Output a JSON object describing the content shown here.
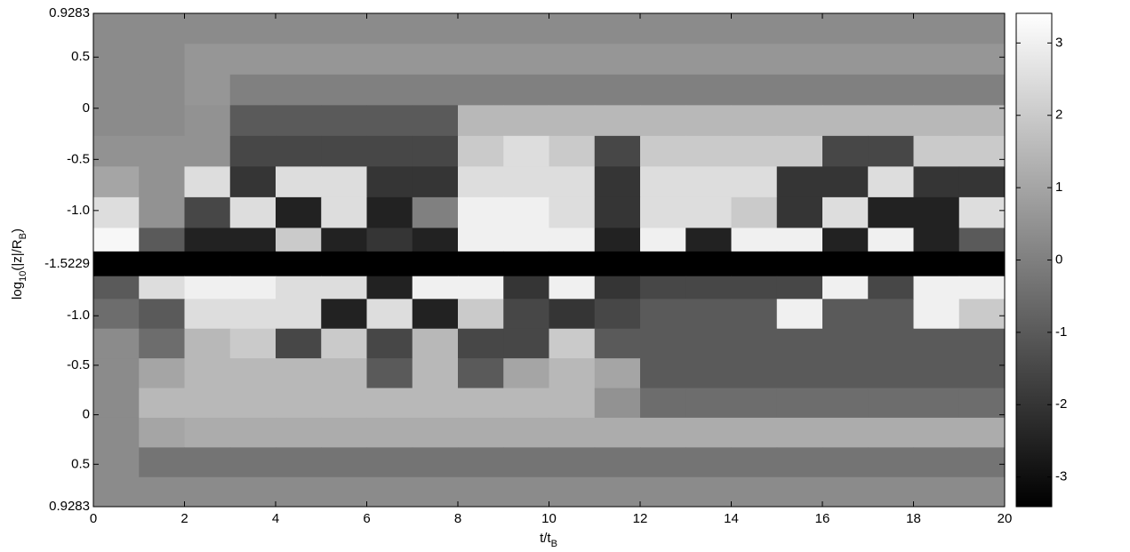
{
  "chart_data": {
    "type": "heatmap",
    "colormap": "gray",
    "xlabel": [
      "t/t",
      "B"
    ],
    "ylabel": [
      "log",
      "10",
      "(|z|/R",
      "B",
      ")"
    ],
    "xlim": [
      0,
      20
    ],
    "xticks": [
      0,
      2,
      4,
      6,
      8,
      10,
      12,
      14,
      16,
      18,
      20
    ],
    "x": [
      0.5,
      1.5,
      2.5,
      3.5,
      4.5,
      5.5,
      6.5,
      7.5,
      8.5,
      9.5,
      10.5,
      11.5,
      12.5,
      13.5,
      14.5,
      15.5,
      16.5,
      17.5,
      18.5,
      19.5
    ],
    "clim": [
      -3.41,
      3.41
    ],
    "cticks": [
      -3,
      -2,
      -1,
      0,
      1,
      2,
      3
    ],
    "panels": [
      {
        "ylim": [
          -1.5229,
          0.9283
        ],
        "yticks": [
          0.9283,
          0.5,
          0,
          -0.5,
          {
            "value": -1,
            "label": "-1.0"
          },
          -1.5229
        ],
        "y": [
          0.78,
          0.48,
          0.18,
          -0.12,
          -0.42,
          -0.72,
          -1.02,
          -1.32,
          -1.48
        ],
        "z": [
          [
            0.3,
            0.3,
            0.3,
            0.3,
            0.3,
            0.3,
            0.3,
            0.3,
            0.3,
            0.3,
            0.3,
            0.3,
            0.3,
            0.3,
            0.3,
            0.3,
            0.3,
            0.3,
            0.3,
            0.3
          ],
          [
            0.3,
            0.3,
            0.6,
            0.6,
            0.6,
            0.6,
            0.6,
            0.6,
            0.6,
            0.6,
            0.6,
            0.6,
            0.6,
            0.6,
            0.6,
            0.6,
            0.6,
            0.6,
            0.6,
            0.6
          ],
          [
            0.3,
            0.3,
            0.6,
            0,
            0,
            0,
            0,
            0,
            0,
            0,
            0,
            0,
            0,
            0,
            0,
            0,
            0,
            0,
            0,
            0
          ],
          [
            0.3,
            0.3,
            0.5,
            -1,
            -1,
            -1,
            -1,
            -1,
            1.5,
            1.5,
            1.5,
            1.5,
            1.5,
            1.5,
            1.5,
            1.5,
            1.5,
            1.5,
            1.5,
            1.5
          ],
          [
            0.5,
            0.5,
            0.5,
            -1.5,
            -1.5,
            -1.5,
            -1.5,
            -1.5,
            2,
            2.5,
            2,
            -1.5,
            2,
            2,
            2,
            2,
            -1.5,
            -1.5,
            2,
            2
          ],
          [
            1,
            0.5,
            2.5,
            -2,
            2.5,
            2.5,
            -2,
            -2,
            2.5,
            2.5,
            2.5,
            -2,
            2.5,
            2.5,
            2.5,
            -2,
            -2,
            2.5,
            -2,
            -2
          ],
          [
            2.5,
            0.5,
            -1.5,
            2.5,
            -2.5,
            2.5,
            -2.5,
            0,
            3,
            3,
            2.5,
            -2,
            2.5,
            2.5,
            2,
            -2,
            2.5,
            -2.5,
            -2.5,
            2.5
          ],
          [
            3.2,
            -1,
            -2.5,
            -2.5,
            2,
            -2.5,
            -2,
            -2.5,
            3,
            3,
            3,
            -2.5,
            3,
            -2.5,
            3,
            3,
            -2.5,
            3,
            -2.5,
            -1
          ],
          [
            -3.4,
            -3.4,
            -3.4,
            -3.4,
            -3.4,
            -3.4,
            -3.4,
            -3.4,
            -3.4,
            -3.4,
            -3.4,
            -3.4,
            -3.4,
            -3.4,
            -3.4,
            -3.4,
            -3.4,
            -3.4,
            -3.4,
            -3.4
          ]
        ]
      },
      {
        "ylim": [
          -1.5229,
          0.9283
        ],
        "yticks": [
          {
            "value": -1,
            "label": "-1.0"
          },
          -0.5,
          0,
          0.5,
          0.9283
        ],
        "y": [
          -1.48,
          -1.32,
          -1.02,
          -0.72,
          -0.42,
          -0.12,
          0.18,
          0.48,
          0.78
        ],
        "z": [
          [
            -3.4,
            -3.4,
            -3.4,
            -3.4,
            -3.4,
            -3.4,
            -3.4,
            -3.4,
            -3.4,
            -3.4,
            -3.4,
            -3.4,
            -3.4,
            -3.4,
            -3.4,
            -3.4,
            -3.4,
            -3.4,
            -3.4,
            -3.4
          ],
          [
            -1,
            2.5,
            3,
            3,
            2.5,
            2.5,
            -2.5,
            3,
            3,
            -2,
            3,
            -2,
            -1.5,
            -1.5,
            -1.5,
            -1.5,
            3,
            -1.5,
            3,
            3
          ],
          [
            -0.5,
            -1,
            2.5,
            2.5,
            2.5,
            -2.5,
            2.5,
            -2.5,
            2,
            -1.5,
            -2,
            -1.5,
            -1,
            -1,
            -1,
            3,
            -1,
            -1,
            3,
            2
          ],
          [
            0.3,
            -0.5,
            1.5,
            2,
            -1.5,
            2,
            -1.5,
            1.5,
            -1.5,
            -1.5,
            2,
            -1,
            -1,
            -1,
            -1,
            -1,
            -1,
            -1,
            -1,
            -1
          ],
          [
            0.3,
            1,
            1.5,
            1.5,
            1.5,
            1.5,
            -1,
            1.5,
            -1,
            1,
            1.5,
            1,
            -1,
            -1,
            -1,
            -1,
            -1,
            -1,
            -1,
            -1
          ],
          [
            0.3,
            1.5,
            1.5,
            1.5,
            1.5,
            1.5,
            1.5,
            1.5,
            1.5,
            1.5,
            1.5,
            0.5,
            -0.5,
            -0.5,
            -0.5,
            -0.5,
            -0.5,
            -0.5,
            -0.5,
            -0.5
          ],
          [
            0.3,
            1,
            1.2,
            1.2,
            1.2,
            1.2,
            1.2,
            1.2,
            1.2,
            1.2,
            1.2,
            1.2,
            1.2,
            1.2,
            1.2,
            1.2,
            1.2,
            1.2,
            1.2,
            1.2
          ],
          [
            0.3,
            -0.3,
            -0.3,
            -0.3,
            -0.3,
            -0.3,
            -0.3,
            -0.3,
            -0.3,
            -0.3,
            -0.3,
            -0.3,
            -0.3,
            -0.3,
            -0.3,
            -0.3,
            -0.3,
            -0.3,
            -0.3,
            -0.3
          ],
          [
            0.3,
            0.3,
            0.3,
            0.3,
            0.3,
            0.3,
            0.3,
            0.3,
            0.3,
            0.3,
            0.3,
            0.3,
            0.3,
            0.3,
            0.3,
            0.3,
            0.3,
            0.3,
            0.3,
            0.3
          ]
        ]
      }
    ]
  }
}
